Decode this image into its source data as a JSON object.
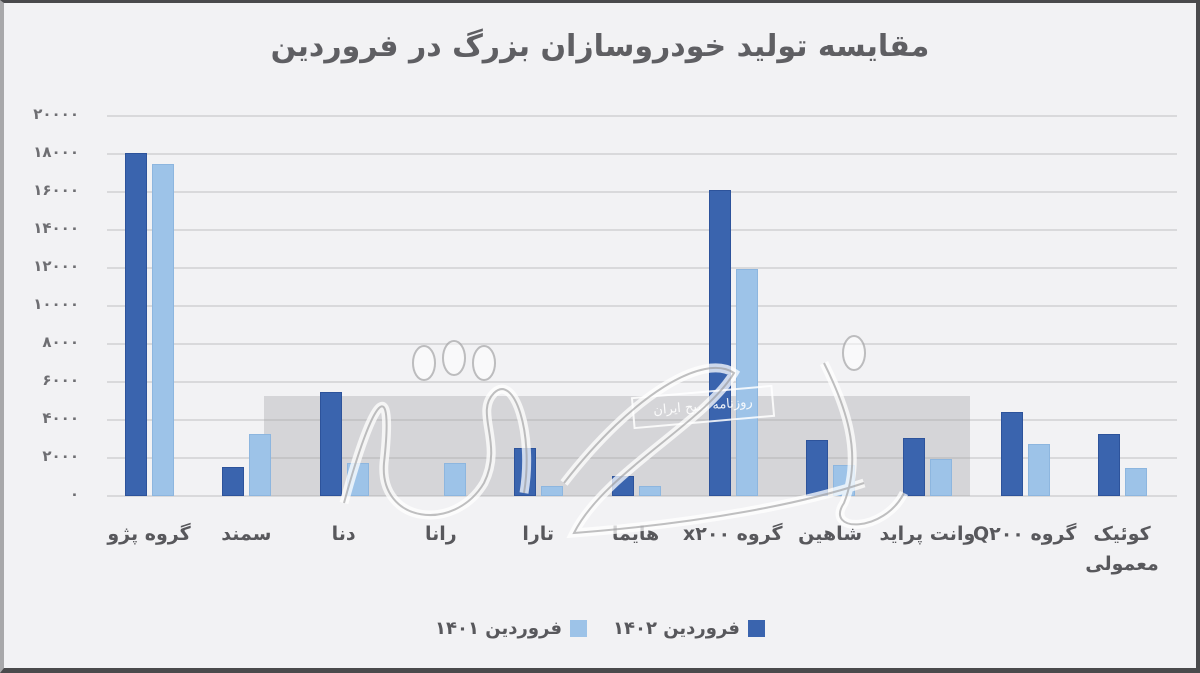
{
  "chart_data": {
    "type": "bar",
    "title": "مقایسه تولید خودروسازان بزرگ در فروردین",
    "xlabel": "",
    "ylabel": "",
    "ylim": [
      0,
      20000
    ],
    "yticks": [
      0,
      2000,
      4000,
      6000,
      8000,
      10000,
      12000,
      14000,
      16000,
      18000,
      20000
    ],
    "ytick_labels": [
      "۰",
      "۲۰۰۰",
      "۴۰۰۰",
      "۶۰۰۰",
      "۸۰۰۰",
      "۱۰۰۰۰",
      "۱۲۰۰۰",
      "۱۴۰۰۰",
      "۱۶۰۰۰",
      "۱۸۰۰۰",
      "۲۰۰۰۰"
    ],
    "grid": true,
    "legend_position": "bottom",
    "categories": [
      "گروه پژو",
      "سمند",
      "دنا",
      "رانا",
      "تارا",
      "هایما",
      "گروه x۲۰۰",
      "شاهین",
      "وانت پراید",
      "گروه Q۲۰۰",
      "کوئیک معمولی"
    ],
    "series": [
      {
        "name": "فروردین ۱۴۰۲",
        "color": "#3a64ae",
        "values": [
          18000,
          1500,
          5400,
          0,
          2500,
          1000,
          16050,
          2900,
          3000,
          4350,
          3200
        ]
      },
      {
        "name": "فروردین ۱۴۰۱",
        "color": "#9dc3e8",
        "values": [
          17400,
          3200,
          1700,
          1700,
          450,
          450,
          11900,
          1600,
          1900,
          2700,
          1400
        ]
      }
    ]
  },
  "labels": {
    "title": "مقایسه تولید خودروسازان بزرگ در فروردین",
    "legend_2": "فروردین ۱۴۰۲",
    "legend_1": "فروردین ۱۴۰۱",
    "watermark_stamp": "روزنامه صبح ایران",
    "watermark_logo": "دنیای اقتصاد"
  }
}
